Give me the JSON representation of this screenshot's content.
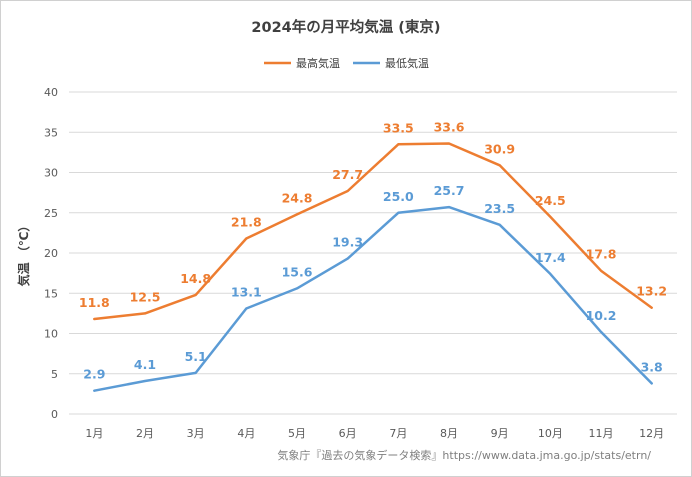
{
  "chart_data": {
    "type": "line",
    "title": "2024年の月平均気温 (東京)",
    "ylabel": "気温 （℃）",
    "xlabel": "",
    "categories": [
      "1月",
      "2月",
      "3月",
      "4月",
      "5月",
      "6月",
      "7月",
      "8月",
      "9月",
      "10月",
      "11月",
      "12月"
    ],
    "series": [
      {
        "name": "最高気温",
        "color": "#ED7D31",
        "values": [
          11.8,
          12.5,
          14.8,
          21.8,
          24.8,
          27.7,
          33.5,
          33.6,
          30.9,
          24.5,
          17.8,
          13.2
        ]
      },
      {
        "name": "最低気温",
        "color": "#5B9BD5",
        "values": [
          2.9,
          4.1,
          5.1,
          13.1,
          15.6,
          19.3,
          25.0,
          25.7,
          23.5,
          17.4,
          10.2,
          3.8
        ]
      }
    ],
    "ylim": [
      0,
      40
    ],
    "yticks": [
      0,
      5,
      10,
      15,
      20,
      25,
      30,
      35,
      40
    ],
    "grid": true,
    "legend_position": "top",
    "data_labels": true
  },
  "source_note": "気象庁『過去の気象データ検索』https://www.data.jma.go.jp/stats/etrn/"
}
